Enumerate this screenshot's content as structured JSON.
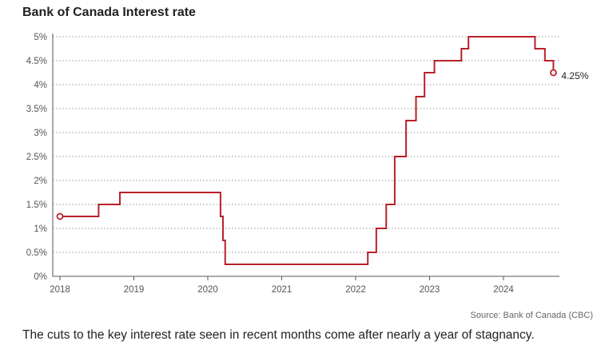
{
  "chart_data": {
    "type": "line",
    "title": "Bank of Canada Interest rate",
    "xlabel": "",
    "ylabel": "",
    "x_ticks": [
      "2018",
      "2019",
      "2020",
      "2021",
      "2022",
      "2023",
      "2024"
    ],
    "y_ticks": [
      "0%",
      "0.5%",
      "1%",
      "1.5%",
      "2%",
      "2.5%",
      "3%",
      "3.5%",
      "4%",
      "4.5%",
      "5%"
    ],
    "xlim": [
      "2018-01-01",
      "2024-10-01"
    ],
    "ylim": [
      0,
      5
    ],
    "grid": "horizontal dotted",
    "line_style": "step",
    "line_color": "#b8202a",
    "series": [
      {
        "points": [
          {
            "x": "2018-01-01",
            "y": 1.25
          },
          {
            "x": "2018-01-17",
            "y": 1.25
          },
          {
            "x": "2018-07-11",
            "y": 1.5
          },
          {
            "x": "2018-10-24",
            "y": 1.75
          },
          {
            "x": "2020-03-04",
            "y": 1.25
          },
          {
            "x": "2020-03-16",
            "y": 0.75
          },
          {
            "x": "2020-03-27",
            "y": 0.25
          },
          {
            "x": "2022-03-02",
            "y": 0.5
          },
          {
            "x": "2022-04-13",
            "y": 1.0
          },
          {
            "x": "2022-06-01",
            "y": 1.5
          },
          {
            "x": "2022-07-13",
            "y": 2.5
          },
          {
            "x": "2022-09-07",
            "y": 3.25
          },
          {
            "x": "2022-10-26",
            "y": 3.75
          },
          {
            "x": "2022-12-07",
            "y": 4.25
          },
          {
            "x": "2023-01-25",
            "y": 4.5
          },
          {
            "x": "2023-06-07",
            "y": 4.75
          },
          {
            "x": "2023-07-12",
            "y": 5.0
          },
          {
            "x": "2024-06-05",
            "y": 4.75
          },
          {
            "x": "2024-07-24",
            "y": 4.5
          },
          {
            "x": "2024-09-04",
            "y": 4.25
          }
        ]
      }
    ],
    "end_label": "4.25%",
    "source": "Source: Bank of Canada (CBC)"
  },
  "caption": "The cuts to the key interest rate seen in recent months come after nearly a year of stagnancy."
}
